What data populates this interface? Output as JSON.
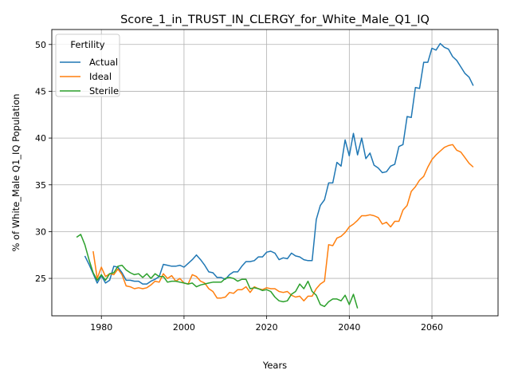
{
  "chart_data": {
    "type": "line",
    "title": "Score_1_in_TRUST_IN_CLERGY_for_White_Male_Q1_IQ",
    "xlabel": "Years",
    "ylabel": "% of White_Male Q1_IQ Population",
    "xlim": [
      1968,
      2076
    ],
    "ylim": [
      21.0,
      51.6
    ],
    "xticks": [
      1980,
      2000,
      2020,
      2040,
      2060
    ],
    "yticks": [
      25,
      30,
      35,
      40,
      45,
      50
    ],
    "grid": true,
    "legend": {
      "title": "Fertility",
      "placement": "top-left"
    },
    "series": [
      {
        "name": "Actual",
        "color": "#1f77b4",
        "x": [
          1976,
          1977,
          1978,
          1979,
          1980,
          1981,
          1982,
          1983,
          1984,
          1985,
          1986,
          1987,
          1988,
          1989,
          1990,
          1991,
          1992,
          1993,
          1994,
          1995,
          1996,
          1997,
          1998,
          1999,
          2000,
          2001,
          2002,
          2003,
          2004,
          2005,
          2006,
          2007,
          2008,
          2009,
          2010,
          2011,
          2012,
          2013,
          2014,
          2015,
          2016,
          2017,
          2018,
          2019,
          2020,
          2021,
          2022,
          2023,
          2024,
          2025,
          2026,
          2027,
          2028,
          2029,
          2030,
          2031,
          2032,
          2033,
          2034,
          2035,
          2036,
          2037,
          2038,
          2039,
          2040,
          2041,
          2042,
          2043,
          2044,
          2045,
          2046,
          2047,
          2048,
          2049,
          2050,
          2051,
          2052,
          2053,
          2054,
          2055,
          2056,
          2057,
          2058,
          2059,
          2060,
          2061,
          2062,
          2063,
          2064,
          2065,
          2066,
          2067,
          2068,
          2069,
          2070
        ],
        "y": [
          27.4,
          26.5,
          25.5,
          24.5,
          25.3,
          24.5,
          24.8,
          26.3,
          26.2,
          25.6,
          24.8,
          24.8,
          24.7,
          24.7,
          24.4,
          24.4,
          24.7,
          24.9,
          25.2,
          26.5,
          26.4,
          26.3,
          26.3,
          26.4,
          26.2,
          26.6,
          27.0,
          27.5,
          27.0,
          26.4,
          25.7,
          25.6,
          25.1,
          25.1,
          24.9,
          25.4,
          25.7,
          25.7,
          26.3,
          26.8,
          26.8,
          26.9,
          27.3,
          27.3,
          27.8,
          27.9,
          27.7,
          27.0,
          27.2,
          27.1,
          27.7,
          27.4,
          27.3,
          27.0,
          26.9,
          26.9,
          31.3,
          32.8,
          33.4,
          35.2,
          35.2,
          37.4,
          37.0,
          39.8,
          38.1,
          40.5,
          38.2,
          40.0,
          37.8,
          38.4,
          37.1,
          36.8,
          36.3,
          36.4,
          37.0,
          37.2,
          39.1,
          39.3,
          42.3,
          42.2,
          45.4,
          45.3,
          48.1,
          48.1,
          49.6,
          49.4,
          50.1,
          49.7,
          49.5,
          48.7,
          48.3,
          47.6,
          46.9,
          46.5,
          45.6
        ]
      },
      {
        "name": "Ideal",
        "color": "#ff7f0e",
        "x": [
          1978,
          1979,
          1980,
          1981,
          1982,
          1983,
          1984,
          1985,
          1986,
          1987,
          1988,
          1989,
          1990,
          1991,
          1992,
          1993,
          1994,
          1995,
          1996,
          1997,
          1998,
          1999,
          2000,
          2001,
          2002,
          2003,
          2004,
          2005,
          2006,
          2007,
          2008,
          2009,
          2010,
          2011,
          2012,
          2013,
          2014,
          2015,
          2016,
          2017,
          2018,
          2019,
          2020,
          2021,
          2022,
          2023,
          2024,
          2025,
          2026,
          2027,
          2028,
          2029,
          2030,
          2031,
          2032,
          2033,
          2034,
          2035,
          2036,
          2037,
          2038,
          2039,
          2040,
          2041,
          2042,
          2043,
          2044,
          2045,
          2046,
          2047,
          2048,
          2049,
          2050,
          2051,
          2052,
          2053,
          2054,
          2055,
          2056,
          2057,
          2058,
          2059,
          2060,
          2061,
          2062,
          2063,
          2064,
          2065,
          2066,
          2067,
          2068,
          2069,
          2070
        ],
        "y": [
          27.9,
          25.0,
          26.2,
          25.2,
          25.5,
          25.4,
          26.0,
          25.4,
          24.2,
          24.1,
          23.9,
          24.0,
          23.9,
          24.0,
          24.3,
          24.7,
          24.6,
          25.5,
          25.0,
          25.3,
          24.7,
          25.0,
          24.5,
          24.4,
          25.4,
          25.2,
          24.7,
          24.5,
          23.9,
          23.6,
          22.9,
          22.9,
          23.0,
          23.5,
          23.4,
          23.8,
          23.8,
          24.1,
          23.5,
          24.1,
          23.9,
          23.8,
          24.0,
          23.9,
          23.9,
          23.6,
          23.5,
          23.6,
          23.2,
          23.0,
          23.1,
          22.6,
          23.1,
          23.1,
          23.9,
          24.4,
          24.7,
          28.6,
          28.5,
          29.3,
          29.5,
          29.9,
          30.5,
          30.8,
          31.2,
          31.7,
          31.7,
          31.8,
          31.7,
          31.5,
          30.8,
          31.0,
          30.5,
          31.1,
          31.1,
          32.3,
          32.8,
          34.3,
          34.8,
          35.5,
          35.9,
          36.9,
          37.7,
          38.2,
          38.6,
          39.0,
          39.2,
          39.3,
          38.7,
          38.5,
          37.9,
          37.3,
          36.9
        ]
      },
      {
        "name": "Sterile",
        "color": "#2ca02c",
        "x": [
          1974,
          1975,
          1976,
          1977,
          1978,
          1979,
          1980,
          1981,
          1982,
          1983,
          1984,
          1985,
          1986,
          1987,
          1988,
          1989,
          1990,
          1991,
          1992,
          1993,
          1994,
          1995,
          1996,
          1997,
          1998,
          1999,
          2000,
          2001,
          2002,
          2003,
          2004,
          2005,
          2006,
          2007,
          2008,
          2009,
          2010,
          2011,
          2012,
          2013,
          2014,
          2015,
          2016,
          2017,
          2018,
          2019,
          2020,
          2021,
          2022,
          2023,
          2024,
          2025,
          2026,
          2027,
          2028,
          2029,
          2030,
          2031,
          2032,
          2033,
          2034,
          2035,
          2036,
          2037,
          2038,
          2039,
          2040,
          2041,
          2042
        ],
        "y": [
          29.4,
          29.7,
          28.6,
          27.0,
          25.6,
          24.8,
          25.4,
          24.8,
          25.5,
          25.6,
          26.3,
          26.4,
          25.9,
          25.6,
          25.4,
          25.5,
          25.1,
          25.5,
          25.0,
          25.5,
          25.2,
          25.2,
          24.6,
          24.7,
          24.7,
          24.6,
          24.5,
          24.4,
          24.5,
          24.1,
          24.3,
          24.4,
          24.5,
          24.6,
          24.6,
          24.6,
          25.0,
          25.1,
          25.0,
          24.7,
          24.9,
          24.9,
          23.9,
          24.0,
          23.9,
          23.7,
          23.8,
          23.6,
          23.0,
          22.6,
          22.5,
          22.6,
          23.3,
          23.6,
          24.4,
          23.9,
          24.7,
          23.6,
          23.2,
          22.2,
          22.0,
          22.5,
          22.8,
          22.8,
          22.6,
          23.2,
          22.2,
          23.3,
          21.8
        ]
      }
    ]
  }
}
